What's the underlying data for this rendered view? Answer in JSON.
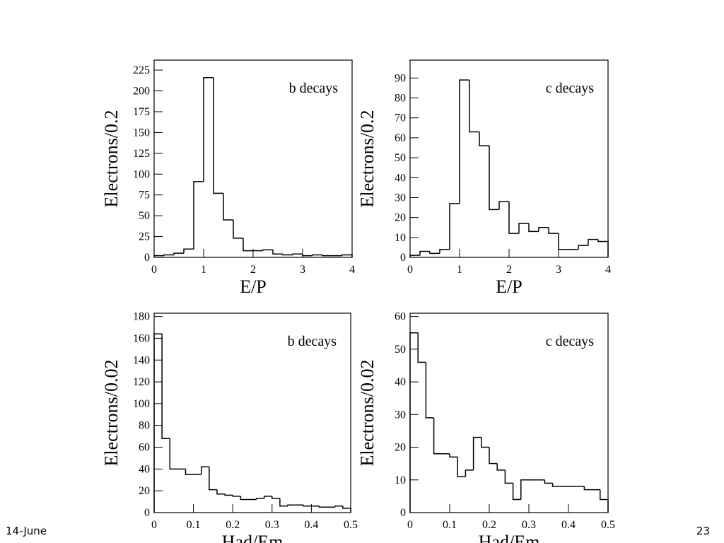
{
  "chart_data": [
    {
      "type": "histogram",
      "annotation": "b decays",
      "xlabel": "E/P",
      "ylabel": "Electrons/0.2",
      "bins": [
        0,
        0.2,
        0.4,
        0.6,
        0.8,
        1.0,
        1.2,
        1.4,
        1.6,
        1.8,
        2.0,
        2.2,
        2.4,
        2.6,
        2.8,
        3.0,
        3.2,
        3.4,
        3.6,
        3.8,
        4.0
      ],
      "counts": [
        2,
        3,
        5,
        10,
        91,
        216,
        77,
        45,
        23,
        8,
        8,
        9,
        4,
        3,
        4,
        2,
        3,
        2,
        2,
        3
      ],
      "xlim": [
        0,
        4
      ],
      "xticks": [
        0,
        1,
        2,
        3,
        4
      ],
      "ylim": [
        0,
        237
      ],
      "yticks": [
        0,
        25,
        50,
        75,
        100,
        125,
        150,
        175,
        200,
        225
      ],
      "color": "#000000"
    },
    {
      "type": "histogram",
      "annotation": "c decays",
      "xlabel": "E/P",
      "ylabel": "Electrons/0.2",
      "bins": [
        0,
        0.2,
        0.4,
        0.6,
        0.8,
        1.0,
        1.2,
        1.4,
        1.6,
        1.8,
        2.0,
        2.2,
        2.4,
        2.6,
        2.8,
        3.0,
        3.2,
        3.4,
        3.6,
        3.8,
        4.0
      ],
      "counts": [
        1,
        3,
        2,
        4,
        27,
        89,
        63,
        56,
        24,
        28,
        12,
        17,
        13,
        15,
        12,
        4,
        4,
        6,
        9,
        8
      ],
      "xlim": [
        0,
        4
      ],
      "xticks": [
        0,
        1,
        2,
        3,
        4
      ],
      "ylim": [
        0,
        99
      ],
      "yticks": [
        0,
        10,
        20,
        30,
        40,
        50,
        60,
        70,
        80,
        90
      ],
      "color": "#000000"
    },
    {
      "type": "histogram",
      "annotation": "b decays",
      "xlabel": "Had/Em",
      "ylabel": "Electrons/0.02",
      "bins": [
        0,
        0.02,
        0.04,
        0.06,
        0.08,
        0.1,
        0.12,
        0.14,
        0.16,
        0.18,
        0.2,
        0.22,
        0.24,
        0.26,
        0.28,
        0.3,
        0.32,
        0.34,
        0.36,
        0.38,
        0.4,
        0.42,
        0.44,
        0.46,
        0.48,
        0.5
      ],
      "counts": [
        164,
        68,
        40,
        40,
        35,
        35,
        42,
        21,
        17,
        16,
        15,
        12,
        12,
        13,
        15,
        13,
        6,
        7,
        7,
        6,
        6,
        5,
        5,
        6,
        4
      ],
      "xlim": [
        0,
        0.5
      ],
      "xticks": [
        0,
        0.1,
        0.2,
        0.3,
        0.4,
        0.5
      ],
      "ylim": [
        0,
        183
      ],
      "yticks": [
        0,
        20,
        40,
        60,
        80,
        100,
        120,
        140,
        160,
        180
      ],
      "color": "#000000"
    },
    {
      "type": "histogram",
      "annotation": "c decays",
      "xlabel": "Had/Em",
      "ylabel": "Electrons/0.02",
      "bins": [
        0,
        0.02,
        0.04,
        0.06,
        0.08,
        0.1,
        0.12,
        0.14,
        0.16,
        0.18,
        0.2,
        0.22,
        0.24,
        0.26,
        0.28,
        0.3,
        0.32,
        0.34,
        0.36,
        0.38,
        0.4,
        0.42,
        0.44,
        0.46,
        0.48,
        0.5
      ],
      "counts": [
        55,
        46,
        29,
        18,
        18,
        17,
        11,
        13,
        23,
        20,
        15,
        13,
        9,
        4,
        10,
        10,
        10,
        9,
        8,
        8,
        8,
        8,
        7,
        7,
        4
      ],
      "xlim": [
        0,
        0.5
      ],
      "xticks": [
        0,
        0.1,
        0.2,
        0.3,
        0.4,
        0.5
      ],
      "ylim": [
        0,
        61
      ],
      "yticks": [
        0,
        10,
        20,
        30,
        40,
        50,
        60
      ],
      "color": "#000000"
    }
  ],
  "footer": {
    "date": "14-June",
    "page": "23"
  }
}
